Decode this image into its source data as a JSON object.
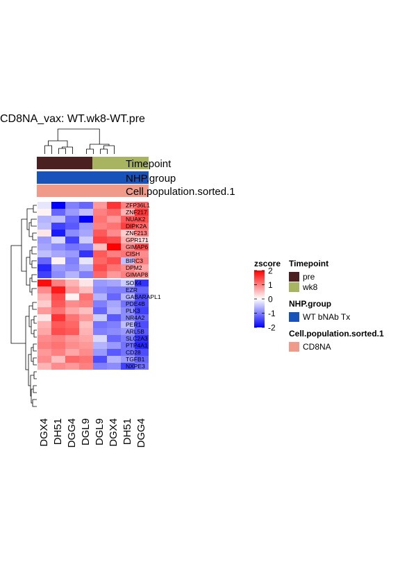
{
  "chart_data": {
    "type": "heatmap",
    "title": "CD8NA_vax: WT.wk8-WT.pre",
    "columns": [
      "DGX4",
      "DH51",
      "DGG4",
      "DGL9",
      "DGL9",
      "DGX4",
      "DH51",
      "DGG4"
    ],
    "rows": [
      "ZFP36L1",
      "ZNF217",
      "NUAK2",
      "DIPK2A",
      "ZNF213",
      "GPR171",
      "GIMAP6",
      "CISH",
      "BIRC3",
      "DPM2",
      "GIMAP8",
      "SOX4",
      "EZR",
      "GABARAPL1",
      "PDE4B",
      "PLK3",
      "NR4A2",
      "PER1",
      "ARL5B",
      "SLC2A3",
      "PTP4A1",
      "CD28",
      "TGFB1",
      "NXPE3"
    ],
    "values": [
      [
        -0.2,
        -2.0,
        -1.0,
        -1.2,
        0.8,
        1.6,
        1.0,
        1.2
      ],
      [
        0.1,
        -1.2,
        -0.8,
        -0.5,
        1.0,
        1.2,
        0.6,
        1.6
      ],
      [
        -0.6,
        -0.5,
        -1.2,
        -2.0,
        1.1,
        0.8,
        1.3,
        1.4
      ],
      [
        -0.5,
        -1.5,
        -1.3,
        -0.8,
        1.0,
        1.1,
        1.5,
        1.2
      ],
      [
        0.2,
        -1.8,
        -0.9,
        -0.7,
        1.3,
        0.9,
        0.4,
        1.0
      ],
      [
        -0.8,
        -0.3,
        -1.5,
        -0.4,
        1.5,
        1.4,
        0.6,
        0.3
      ],
      [
        -0.7,
        -0.9,
        -1.1,
        -1.0,
        0.5,
        2.0,
        0.9,
        1.4
      ],
      [
        -0.5,
        -0.7,
        -0.8,
        -1.6,
        1.3,
        1.0,
        1.1,
        0.9
      ],
      [
        -1.2,
        0.1,
        -1.0,
        -0.2,
        1.2,
        1.4,
        -0.5,
        1.0
      ],
      [
        -1.7,
        -0.8,
        -0.9,
        -0.6,
        1.4,
        1.1,
        0.9,
        0.7
      ],
      [
        -1.5,
        -0.9,
        -0.6,
        -1.0,
        1.2,
        0.8,
        1.0,
        0.9
      ],
      [
        1.9,
        1.0,
        0.6,
        0.2,
        -0.8,
        -0.7,
        -0.4,
        -1.6
      ],
      [
        0.9,
        1.8,
        0.8,
        0.5,
        -0.9,
        -1.0,
        -1.0,
        -1.2
      ],
      [
        0.6,
        1.4,
        0.1,
        1.1,
        -0.6,
        -1.2,
        -0.6,
        -1.4
      ],
      [
        0.4,
        1.3,
        0.9,
        1.0,
        -1.0,
        -0.7,
        -1.1,
        -1.4
      ],
      [
        0.8,
        1.1,
        0.7,
        0.5,
        -1.2,
        -0.6,
        -0.9,
        -1.5
      ],
      [
        0.2,
        1.6,
        1.1,
        0.8,
        -0.4,
        -1.3,
        -0.9,
        -1.2
      ],
      [
        0.6,
        1.3,
        1.2,
        0.5,
        -1.1,
        -1.0,
        -0.5,
        -1.4
      ],
      [
        0.7,
        1.4,
        1.3,
        0.6,
        -1.0,
        -0.9,
        -0.8,
        -1.3
      ],
      [
        0.9,
        1.0,
        0.8,
        0.7,
        -0.3,
        -1.2,
        -1.0,
        -1.6
      ],
      [
        1.0,
        1.1,
        0.9,
        0.8,
        -0.6,
        -0.8,
        -1.1,
        -1.7
      ],
      [
        0.8,
        1.0,
        0.7,
        0.9,
        -0.8,
        -1.3,
        -1.1,
        -1.4
      ],
      [
        0.9,
        0.5,
        1.2,
        1.1,
        -1.4,
        -0.6,
        -0.8,
        -1.2
      ],
      [
        0.6,
        0.9,
        0.8,
        1.0,
        -1.0,
        -0.9,
        -1.5,
        -1.1
      ]
    ],
    "color_scale": {
      "min": -2,
      "mid": 0,
      "max": 2,
      "low_color": "#0000FF",
      "mid_color": "#FFFFFF",
      "high_color": "#FF0000",
      "ticks": [
        2,
        1,
        0,
        -1,
        -2
      ],
      "title": "zscore"
    },
    "annotations": [
      {
        "name": "Timepoint",
        "values": [
          "pre",
          "pre",
          "pre",
          "pre",
          "wk8",
          "wk8",
          "wk8",
          "wk8"
        ],
        "levels": [
          "pre",
          "wk8"
        ],
        "colors": {
          "pre": "#4A2020",
          "wk8": "#A8B460"
        }
      },
      {
        "name": "NHP.group",
        "values": [
          "WT bNAb Tx",
          "WT bNAb Tx",
          "WT bNAb Tx",
          "WT bNAb Tx",
          "WT bNAb Tx",
          "WT bNAb Tx",
          "WT bNAb Tx",
          "WT bNAb Tx"
        ],
        "levels": [
          "WT bNAb Tx"
        ],
        "colors": {
          "WT bNAb Tx": "#1753B8"
        }
      },
      {
        "name": "Cell.population.sorted.1",
        "values": [
          "CD8NA",
          "CD8NA",
          "CD8NA",
          "CD8NA",
          "CD8NA",
          "CD8NA",
          "CD8NA",
          "CD8NA"
        ],
        "levels": [
          "CD8NA"
        ],
        "colors": {
          "CD8NA": "#F09A8A"
        }
      }
    ],
    "row_clusters": [
      [
        0,
        1,
        2,
        3,
        4,
        5,
        6,
        7,
        8,
        9,
        10
      ],
      [
        11,
        12,
        13,
        14,
        15,
        16,
        17,
        18,
        19,
        20,
        21,
        22,
        23
      ]
    ],
    "column_clusters": [
      [
        0,
        1,
        2,
        3
      ],
      [
        4,
        5,
        6,
        7
      ]
    ]
  }
}
